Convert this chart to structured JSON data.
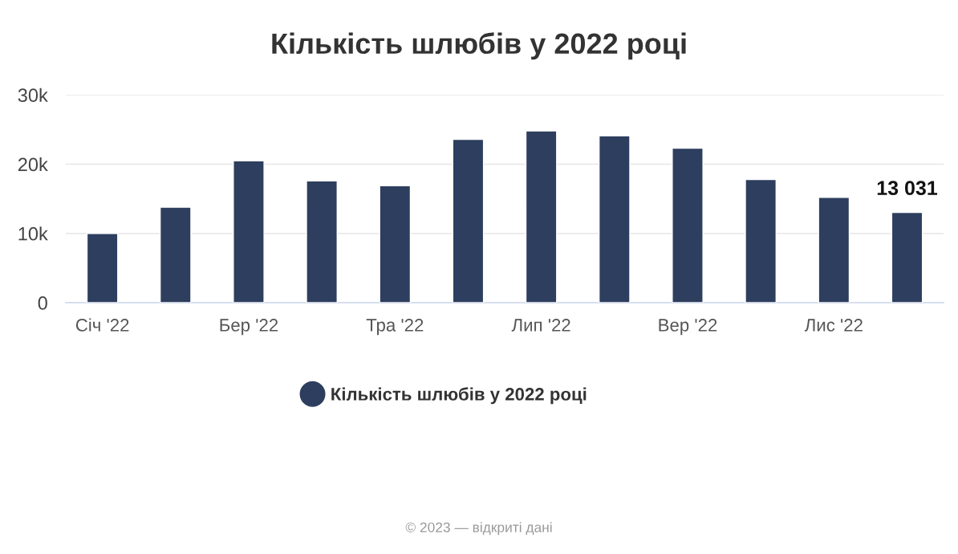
{
  "chart_data": {
    "type": "bar",
    "title": "Кількість шлюбів у 2022 році",
    "categories": [
      "Січ '22",
      null,
      "Бер '22",
      null,
      "Тра '22",
      null,
      "Лип '22",
      null,
      "Вер '22",
      null,
      "Лис '22",
      null
    ],
    "series": [
      {
        "name": "Кількість шлюбів у 2022 році",
        "color": "#2d3e5e",
        "values": [
          10000,
          13800,
          20500,
          17600,
          16900,
          23600,
          24800,
          24100,
          22300,
          17800,
          15200,
          13031
        ],
        "value_labels": [
          null,
          null,
          null,
          null,
          null,
          null,
          null,
          null,
          null,
          null,
          null,
          "13 031"
        ]
      }
    ],
    "ylim": [
      0,
      30000
    ],
    "yticks": [
      0,
      {
        "value": 10000,
        "label": "10k"
      },
      {
        "value": 20000,
        "label": "20k"
      },
      {
        "value": 30000,
        "label": "30k"
      }
    ],
    "grid": "y",
    "legend": "bottom",
    "annotations": [
      "© 2023 — відкриті дані"
    ]
  }
}
